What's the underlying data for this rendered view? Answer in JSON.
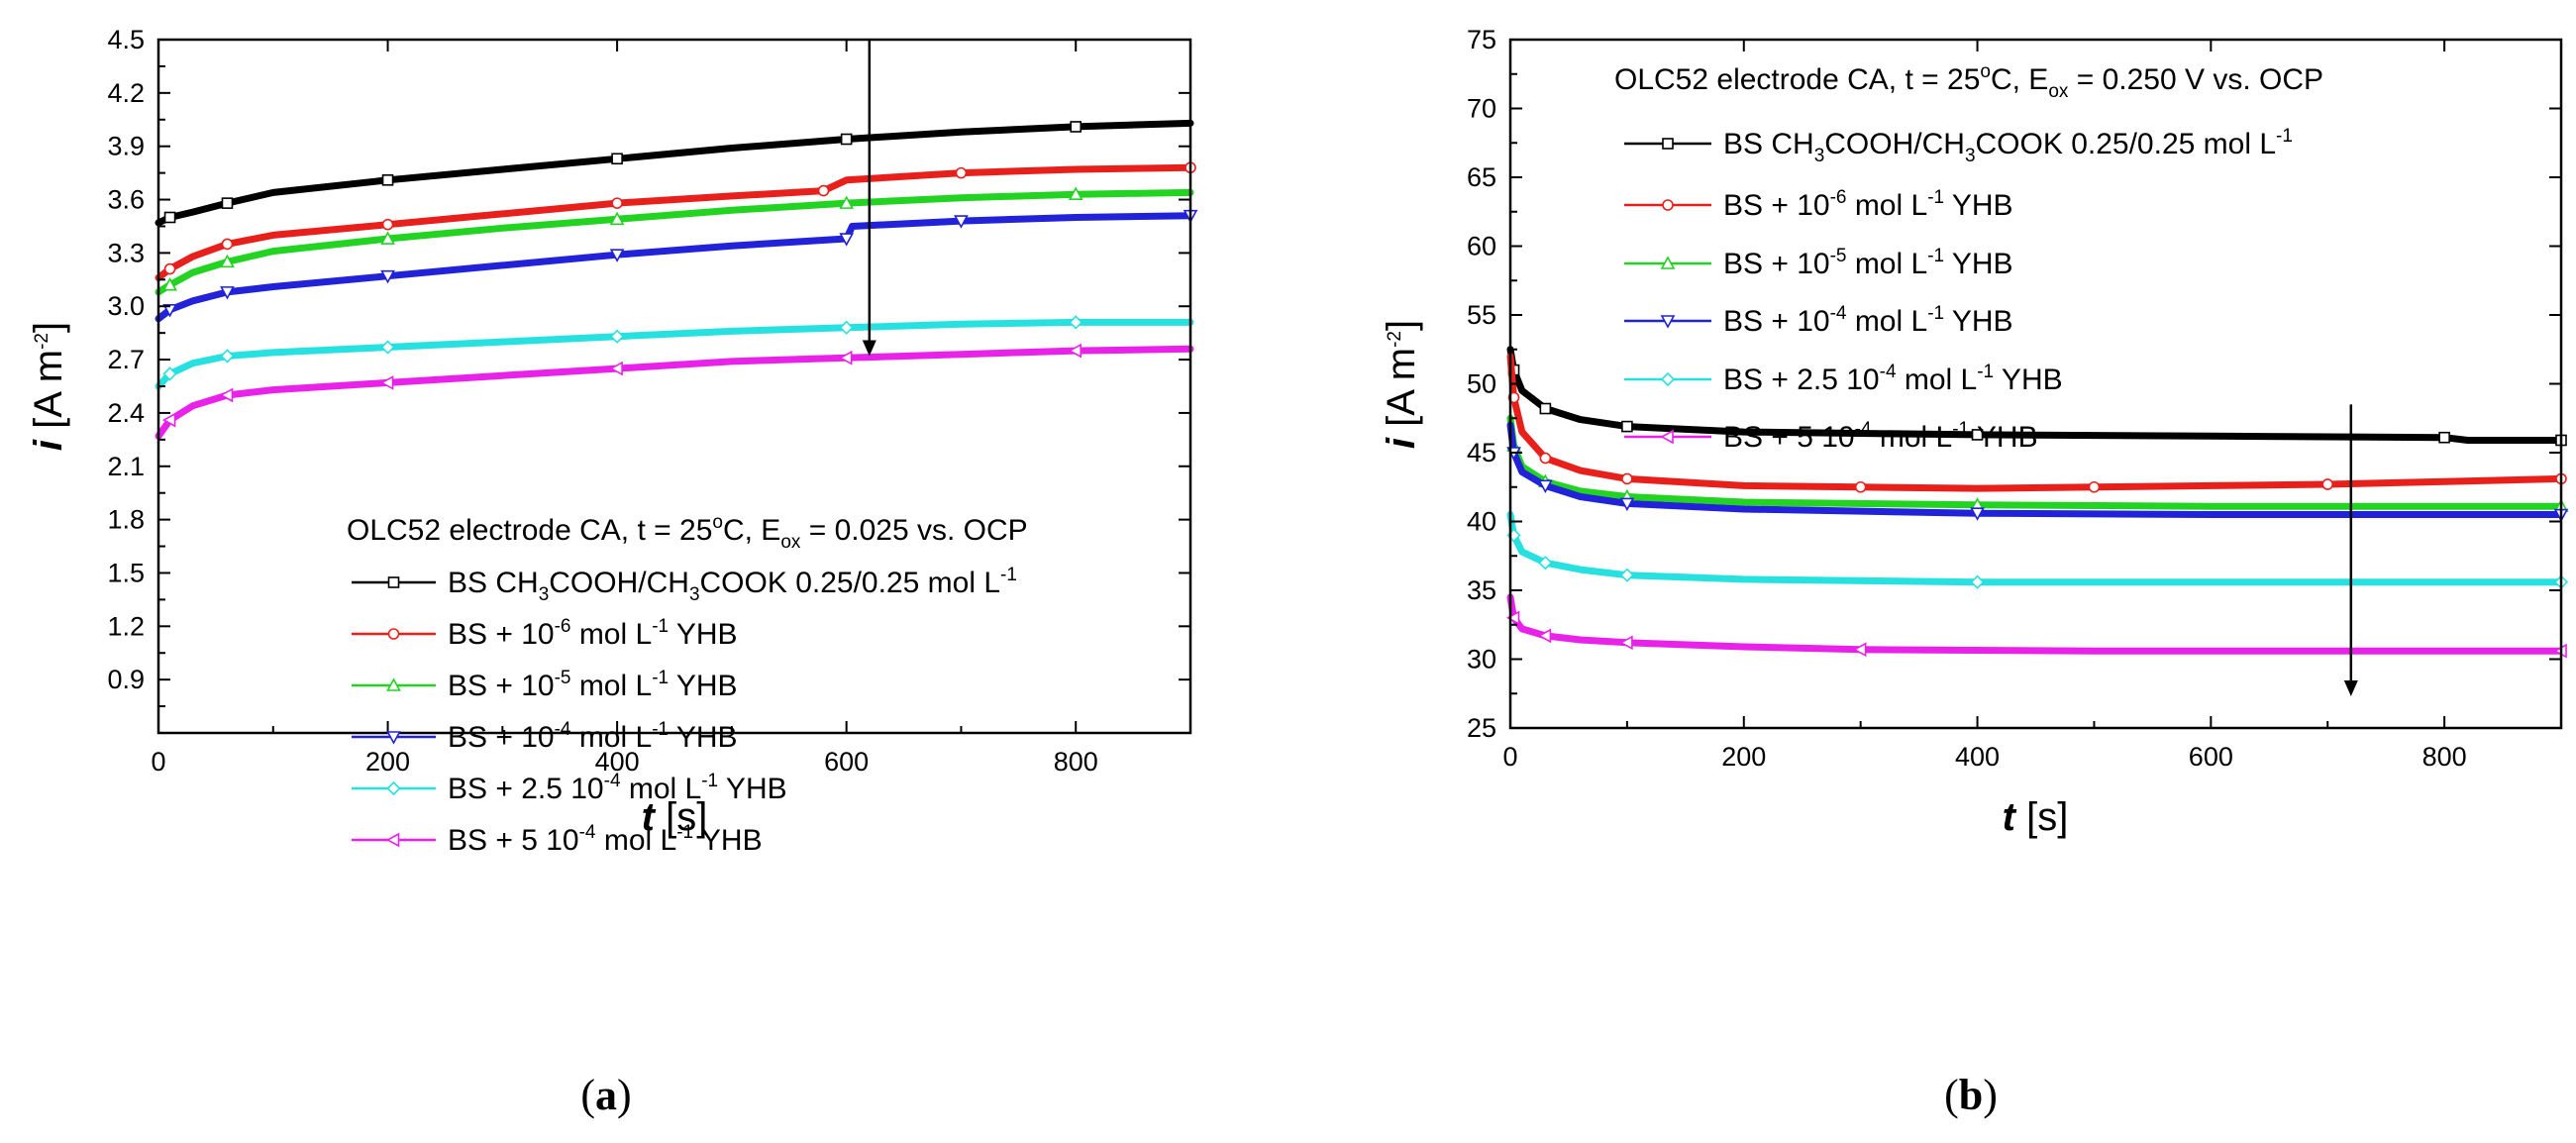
{
  "chart_data": [
    {
      "type": "line",
      "panel": "a",
      "caption": "a",
      "title_prefix": "OLC52 electrode CA, t = 25",
      "title_deg": "o",
      "title_mid": "C, E",
      "title_sub": "ox",
      "title_suffix": " = 0.025 vs. OCP",
      "xlabel_var": "t",
      "xlabel_unit": " [s]",
      "ylabel_var": "i",
      "ylabel_unit": " [A m",
      "ylabel_exp": "-2",
      "ylabel_close": "]",
      "xlim": [
        0,
        900
      ],
      "ylim": [
        0.6,
        4.5
      ],
      "xticks": [
        "0",
        "200",
        "400",
        "600",
        "800"
      ],
      "yticks": [
        "0.9",
        "1.2",
        "1.5",
        "1.8",
        "2.1",
        "2.4",
        "2.7",
        "3.0",
        "3.3",
        "3.6",
        "3.9",
        "4.2",
        "4.5"
      ],
      "arrow": {
        "x": 620,
        "y_from": 4.5,
        "y_to": 2.72
      },
      "series": [
        {
          "name": "BS CH3COOH/CH3COOK 0.25/0.25 mol L-1",
          "color": "#000000",
          "marker": "square",
          "points": [
            [
              0,
              3.47
            ],
            [
              10,
              3.5
            ],
            [
              30,
              3.53
            ],
            [
              60,
              3.58
            ],
            [
              100,
              3.64
            ],
            [
              200,
              3.71
            ],
            [
              300,
              3.77
            ],
            [
              400,
              3.83
            ],
            [
              500,
              3.89
            ],
            [
              600,
              3.94
            ],
            [
              700,
              3.98
            ],
            [
              800,
              4.01
            ],
            [
              900,
              4.03
            ]
          ]
        },
        {
          "name": "BS + 10-6 mol L-1 YHB",
          "color": "#e8201c",
          "marker": "circle",
          "points": [
            [
              0,
              3.16
            ],
            [
              10,
              3.21
            ],
            [
              30,
              3.28
            ],
            [
              60,
              3.35
            ],
            [
              100,
              3.4
            ],
            [
              200,
              3.46
            ],
            [
              300,
              3.52
            ],
            [
              400,
              3.58
            ],
            [
              500,
              3.62
            ],
            [
              580,
              3.65
            ],
            [
              600,
              3.71
            ],
            [
              700,
              3.75
            ],
            [
              800,
              3.77
            ],
            [
              900,
              3.78
            ]
          ]
        },
        {
          "name": "BS + 10-5 mol L-1 YHB",
          "color": "#22d322",
          "marker": "triangle-up",
          "points": [
            [
              0,
              3.08
            ],
            [
              10,
              3.12
            ],
            [
              30,
              3.19
            ],
            [
              60,
              3.25
            ],
            [
              100,
              3.31
            ],
            [
              200,
              3.38
            ],
            [
              300,
              3.44
            ],
            [
              400,
              3.49
            ],
            [
              500,
              3.54
            ],
            [
              600,
              3.58
            ],
            [
              700,
              3.61
            ],
            [
              800,
              3.63
            ],
            [
              900,
              3.64
            ]
          ]
        },
        {
          "name": "BS + 10-4 mol L-1 YHB",
          "color": "#2222d8",
          "marker": "triangle-down",
          "points": [
            [
              0,
              2.93
            ],
            [
              10,
              2.98
            ],
            [
              30,
              3.03
            ],
            [
              60,
              3.08
            ],
            [
              100,
              3.11
            ],
            [
              200,
              3.17
            ],
            [
              300,
              3.23
            ],
            [
              400,
              3.29
            ],
            [
              500,
              3.34
            ],
            [
              600,
              3.38
            ],
            [
              605,
              3.45
            ],
            [
              700,
              3.48
            ],
            [
              800,
              3.5
            ],
            [
              900,
              3.51
            ]
          ]
        },
        {
          "name": "BS + 2.5 10-4 mol L-1 YHB",
          "color": "#27e0e0",
          "marker": "diamond",
          "points": [
            [
              0,
              2.55
            ],
            [
              10,
              2.62
            ],
            [
              30,
              2.68
            ],
            [
              60,
              2.72
            ],
            [
              100,
              2.74
            ],
            [
              200,
              2.77
            ],
            [
              300,
              2.8
            ],
            [
              400,
              2.83
            ],
            [
              500,
              2.86
            ],
            [
              600,
              2.88
            ],
            [
              700,
              2.9
            ],
            [
              800,
              2.91
            ],
            [
              900,
              2.91
            ]
          ]
        },
        {
          "name": "BS + 5 10-4 mol L-1 YHB",
          "color": "#e822e8",
          "marker": "triangle-left",
          "points": [
            [
              0,
              2.27
            ],
            [
              10,
              2.36
            ],
            [
              30,
              2.44
            ],
            [
              60,
              2.5
            ],
            [
              100,
              2.53
            ],
            [
              200,
              2.57
            ],
            [
              300,
              2.61
            ],
            [
              400,
              2.65
            ],
            [
              500,
              2.69
            ],
            [
              600,
              2.71
            ],
            [
              700,
              2.73
            ],
            [
              800,
              2.75
            ],
            [
              900,
              2.76
            ]
          ]
        }
      ],
      "legend_labels": [
        {
          "pre": "BS CH",
          "s1": "3",
          "mid1": "COOH/CH",
          "s2": "3",
          "mid2": "COOK 0.25/0.25 mol L",
          "sup": "-1",
          "post": ""
        },
        {
          "pre": "BS + 10",
          "sup1": "-6",
          "mid": " mol L",
          "sup2": "-1",
          "post": " YHB"
        },
        {
          "pre": "BS + 10",
          "sup1": "-5",
          "mid": " mol L",
          "sup2": "-1",
          "post": " YHB"
        },
        {
          "pre": "BS + 10",
          "sup1": "-4",
          "mid": " mol L",
          "sup2": "-1",
          "post": " YHB"
        },
        {
          "pre": "BS + 2.5 10",
          "sup1": "-4",
          "mid": " mol L",
          "sup2": "-1",
          "post": " YHB"
        },
        {
          "pre": "BS + 5 10",
          "sup1": "-4",
          "mid": " mol L",
          "sup2": "-1",
          "post": " YHB"
        }
      ]
    },
    {
      "type": "line",
      "panel": "b",
      "caption": "b",
      "title_prefix": "OLC52 electrode CA, t = 25",
      "title_deg": "o",
      "title_mid": "C, E",
      "title_sub": "ox",
      "title_suffix": " = 0.250 V vs. OCP",
      "xlabel_var": "t",
      "xlabel_unit": " [s]",
      "ylabel_var": "i",
      "ylabel_unit": " [A m",
      "ylabel_exp": "-2",
      "ylabel_close": "]",
      "xlim": [
        0,
        900
      ],
      "ylim": [
        25,
        75
      ],
      "xticks": [
        "0",
        "200",
        "400",
        "600",
        "800"
      ],
      "yticks": [
        "25",
        "30",
        "35",
        "40",
        "45",
        "50",
        "55",
        "60",
        "65",
        "70",
        "75"
      ],
      "arrow": {
        "x": 720,
        "y_from": 48.5,
        "y_to": 27.3
      },
      "series": [
        {
          "name": "BS CH3COOH/CH3COOK 0.25/0.25 mol L-1",
          "color": "#000000",
          "marker": "square",
          "points": [
            [
              0,
              52.5
            ],
            [
              3,
              51.0
            ],
            [
              10,
              49.5
            ],
            [
              30,
              48.2
            ],
            [
              60,
              47.4
            ],
            [
              100,
              46.9
            ],
            [
              200,
              46.5
            ],
            [
              400,
              46.3
            ],
            [
              600,
              46.2
            ],
            [
              800,
              46.1
            ],
            [
              820,
              45.9
            ],
            [
              900,
              45.9
            ]
          ]
        },
        {
          "name": "BS + 10-6 mol L-1 YHB",
          "color": "#e8201c",
          "marker": "circle",
          "points": [
            [
              0,
              52.0
            ],
            [
              3,
              49.0
            ],
            [
              10,
              46.5
            ],
            [
              30,
              44.6
            ],
            [
              60,
              43.7
            ],
            [
              100,
              43.1
            ],
            [
              200,
              42.6
            ],
            [
              300,
              42.5
            ],
            [
              400,
              42.4
            ],
            [
              500,
              42.5
            ],
            [
              600,
              42.6
            ],
            [
              700,
              42.7
            ],
            [
              800,
              42.9
            ],
            [
              900,
              43.1
            ]
          ]
        },
        {
          "name": "BS + 10-5 mol L-1 YHB",
          "color": "#22d322",
          "marker": "triangle-up",
          "points": [
            [
              0,
              47.5
            ],
            [
              3,
              45.5
            ],
            [
              10,
              44.0
            ],
            [
              30,
              42.9
            ],
            [
              60,
              42.2
            ],
            [
              100,
              41.8
            ],
            [
              200,
              41.4
            ],
            [
              400,
              41.2
            ],
            [
              600,
              41.1
            ],
            [
              900,
              41.1
            ]
          ]
        },
        {
          "name": "BS + 10-4 mol L-1 YHB",
          "color": "#2222d8",
          "marker": "triangle-down",
          "points": [
            [
              0,
              47.0
            ],
            [
              3,
              45.0
            ],
            [
              10,
              43.6
            ],
            [
              30,
              42.6
            ],
            [
              60,
              41.8
            ],
            [
              100,
              41.3
            ],
            [
              200,
              40.9
            ],
            [
              400,
              40.6
            ],
            [
              600,
              40.5
            ],
            [
              900,
              40.5
            ]
          ]
        },
        {
          "name": "BS + 2.5 10-4 mol L-1 YHB",
          "color": "#27e0e0",
          "marker": "diamond",
          "points": [
            [
              0,
              40.5
            ],
            [
              3,
              39.0
            ],
            [
              10,
              37.8
            ],
            [
              30,
              37.0
            ],
            [
              60,
              36.5
            ],
            [
              100,
              36.1
            ],
            [
              200,
              35.8
            ],
            [
              400,
              35.6
            ],
            [
              600,
              35.6
            ],
            [
              900,
              35.6
            ]
          ]
        },
        {
          "name": "BS + 5 10-4 mol L-1 YHB",
          "color": "#e822e8",
          "marker": "triangle-left",
          "points": [
            [
              0,
              34.5
            ],
            [
              3,
              33.0
            ],
            [
              10,
              32.2
            ],
            [
              30,
              31.7
            ],
            [
              60,
              31.4
            ],
            [
              100,
              31.2
            ],
            [
              200,
              30.9
            ],
            [
              300,
              30.7
            ],
            [
              500,
              30.6
            ],
            [
              900,
              30.6
            ]
          ]
        }
      ],
      "legend_labels": [
        {
          "pre": "BS CH",
          "s1": "3",
          "mid1": "COOH/CH",
          "s2": "3",
          "mid2": "COOK 0.25/0.25 mol L",
          "sup": "-1",
          "post": ""
        },
        {
          "pre": "BS + 10",
          "sup1": "-6",
          "mid": " mol L",
          "sup2": "-1",
          "post": " YHB"
        },
        {
          "pre": "BS + 10",
          "sup1": "-5",
          "mid": " mol L",
          "sup2": "-1",
          "post": " YHB"
        },
        {
          "pre": "BS + 10",
          "sup1": "-4",
          "mid": " mol L",
          "sup2": "-1",
          "post": " YHB"
        },
        {
          "pre": "BS + 2.5 10",
          "sup1": "-4",
          "mid": " mol L",
          "sup2": "-1",
          "post": " YHB"
        },
        {
          "pre": "BS + 5 10",
          "sup1": "-4",
          "mid": " mol L",
          "sup2": "-1",
          "post": " YHB"
        }
      ]
    }
  ]
}
